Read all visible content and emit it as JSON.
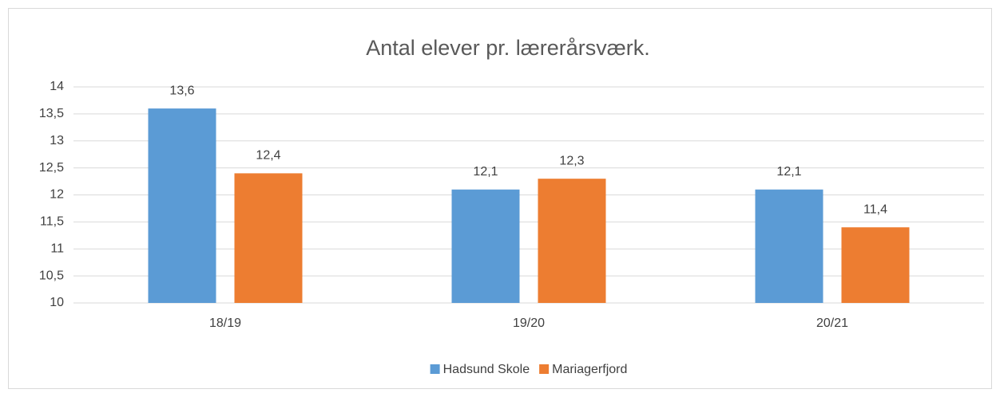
{
  "chart_data": {
    "type": "bar",
    "title": "Antal elever pr. lærerårsværk.",
    "categories": [
      "18/19",
      "19/20",
      "20/21"
    ],
    "series": [
      {
        "name": "Hadsund Skole",
        "color": "#5b9bd5",
        "values": [
          13.6,
          12.1,
          12.1
        ],
        "value_labels": [
          "13,6",
          "12,1",
          "12,1"
        ]
      },
      {
        "name": "Mariagerfjord",
        "color": "#ed7d31",
        "values": [
          12.4,
          12.3,
          11.4
        ],
        "value_labels": [
          "12,4",
          "12,3",
          "11,4"
        ]
      }
    ],
    "ylim": [
      10,
      14
    ],
    "yticks": [
      10,
      {
        "value": 10.5,
        "label": "10,5"
      },
      11,
      {
        "value": 11.5,
        "label": "11,5"
      },
      12,
      {
        "value": 12.5,
        "label": "12,5"
      },
      13,
      {
        "value": 13.5,
        "label": "13,5"
      },
      14
    ],
    "grid": true,
    "legend": "bottom"
  }
}
